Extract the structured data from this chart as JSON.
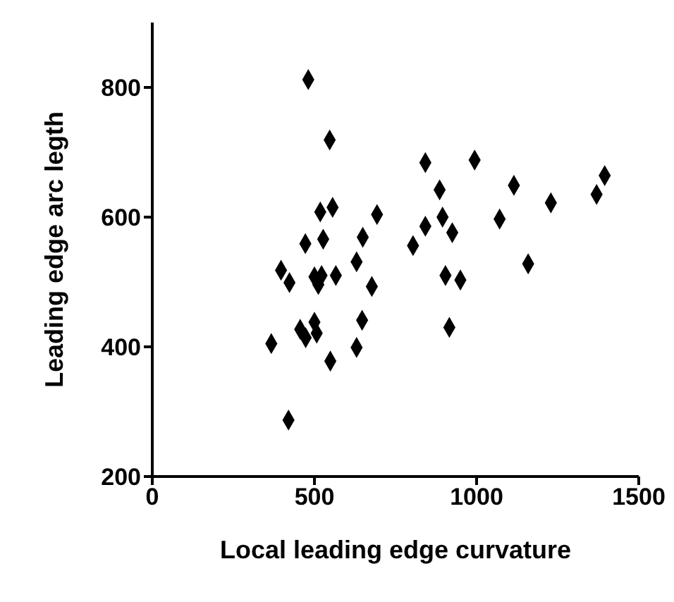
{
  "chart_data": {
    "type": "scatter",
    "xlabel": "Local leading edge curvature",
    "ylabel": "Leading edge arc legth",
    "x": [
      481,
      547,
      842,
      886,
      518,
      556,
      693,
      895,
      842,
      925,
      472,
      527,
      649,
      804,
      630,
      397,
      423,
      500,
      522,
      512,
      566,
      677,
      904,
      456,
      500,
      473,
      507,
      647,
      367,
      630,
      916,
      549,
      420,
      994,
      1115,
      1395,
      1370,
      1229,
      1071,
      1159,
      950
    ],
    "values": [
      812,
      719,
      684,
      642,
      608,
      615,
      604,
      600,
      586,
      576,
      559,
      566,
      569,
      556,
      531,
      518,
      499,
      508,
      510,
      496,
      510,
      493,
      510,
      427,
      438,
      414,
      421,
      441,
      405,
      399,
      430,
      378,
      287,
      688,
      649,
      664,
      635,
      622,
      597,
      528,
      503
    ],
    "color": "#000000",
    "marker": "diamond",
    "xlim": [
      0,
      1500
    ],
    "xticks": [
      0,
      500,
      1000,
      1500
    ],
    "ylim": [
      200,
      900
    ],
    "yticks": [
      200,
      400,
      600,
      800
    ],
    "grid": false,
    "legend": false
  }
}
